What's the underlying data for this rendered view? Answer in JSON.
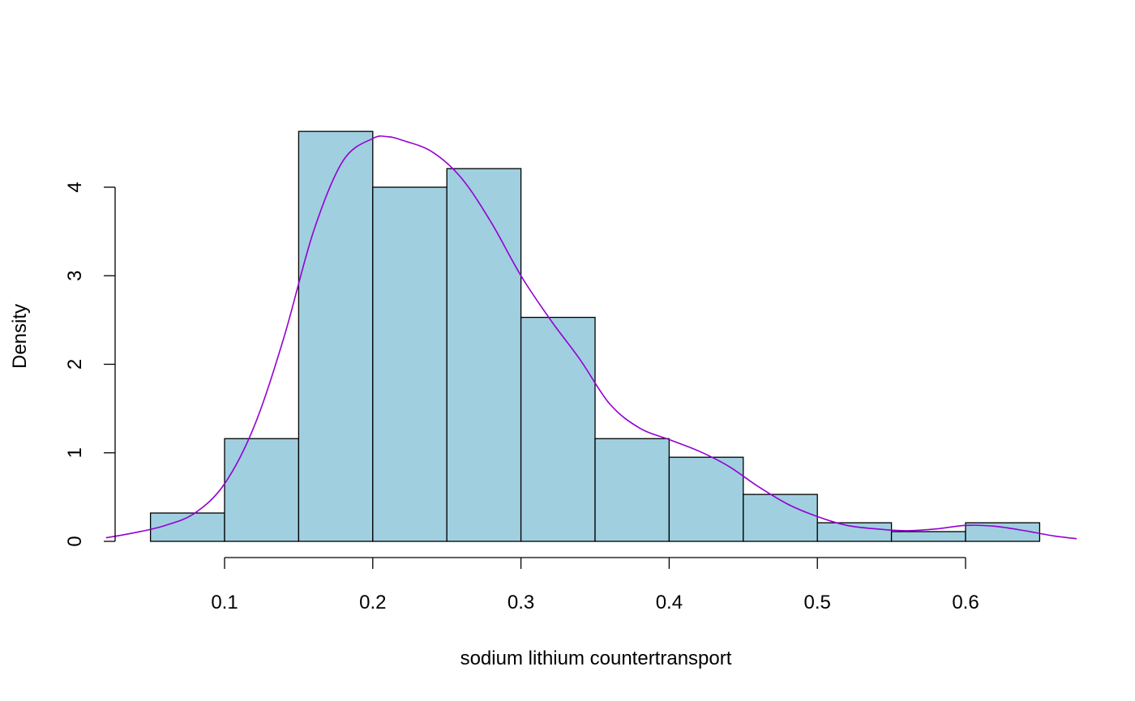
{
  "chart_data": {
    "type": "bar",
    "subtype": "histogram-with-density",
    "title": "",
    "xlabel": "sodium lithium countertransport",
    "ylabel": "Density",
    "bins": [
      {
        "x0": 0.05,
        "x1": 0.1,
        "density": 0.32
      },
      {
        "x0": 0.1,
        "x1": 0.15,
        "density": 1.16
      },
      {
        "x0": 0.15,
        "x1": 0.2,
        "density": 4.63
      },
      {
        "x0": 0.2,
        "x1": 0.25,
        "density": 4.0
      },
      {
        "x0": 0.25,
        "x1": 0.3,
        "density": 4.21
      },
      {
        "x0": 0.3,
        "x1": 0.35,
        "density": 2.53
      },
      {
        "x0": 0.35,
        "x1": 0.4,
        "density": 1.16
      },
      {
        "x0": 0.4,
        "x1": 0.45,
        "density": 0.95
      },
      {
        "x0": 0.45,
        "x1": 0.5,
        "density": 0.53
      },
      {
        "x0": 0.5,
        "x1": 0.55,
        "density": 0.21
      },
      {
        "x0": 0.55,
        "x1": 0.6,
        "density": 0.11
      },
      {
        "x0": 0.6,
        "x1": 0.65,
        "density": 0.21
      }
    ],
    "density_curve": {
      "x": [
        0.02,
        0.04,
        0.06,
        0.08,
        0.1,
        0.12,
        0.14,
        0.16,
        0.18,
        0.2,
        0.21,
        0.22,
        0.24,
        0.26,
        0.28,
        0.3,
        0.32,
        0.34,
        0.36,
        0.38,
        0.4,
        0.42,
        0.44,
        0.46,
        0.48,
        0.5,
        0.52,
        0.54,
        0.56,
        0.58,
        0.6,
        0.62,
        0.64,
        0.66,
        0.675
      ],
      "y": [
        0.04,
        0.1,
        0.18,
        0.32,
        0.65,
        1.3,
        2.3,
        3.5,
        4.3,
        4.55,
        4.57,
        4.53,
        4.4,
        4.1,
        3.6,
        3.0,
        2.5,
        2.05,
        1.55,
        1.28,
        1.15,
        1.02,
        0.85,
        0.62,
        0.42,
        0.28,
        0.18,
        0.14,
        0.12,
        0.14,
        0.18,
        0.17,
        0.12,
        0.06,
        0.03
      ]
    },
    "x_ticks": [
      {
        "value": 0.1,
        "label": "0.1"
      },
      {
        "value": 0.2,
        "label": "0.2"
      },
      {
        "value": 0.3,
        "label": "0.3"
      },
      {
        "value": 0.4,
        "label": "0.4"
      },
      {
        "value": 0.5,
        "label": "0.5"
      },
      {
        "value": 0.6,
        "label": "0.6"
      }
    ],
    "y_ticks": [
      {
        "value": 0,
        "label": "0"
      },
      {
        "value": 1,
        "label": "1"
      },
      {
        "value": 2,
        "label": "2"
      },
      {
        "value": 3,
        "label": "3"
      },
      {
        "value": 4,
        "label": "4"
      }
    ],
    "xlim": [
      0.02,
      0.675
    ],
    "ylim": [
      0,
      4.8
    ],
    "grid": false,
    "legend": "none",
    "colors": {
      "bar_fill": "#a0cfe0",
      "bar_stroke": "#000000",
      "curve": "#9400d3",
      "axis": "#000000"
    }
  }
}
